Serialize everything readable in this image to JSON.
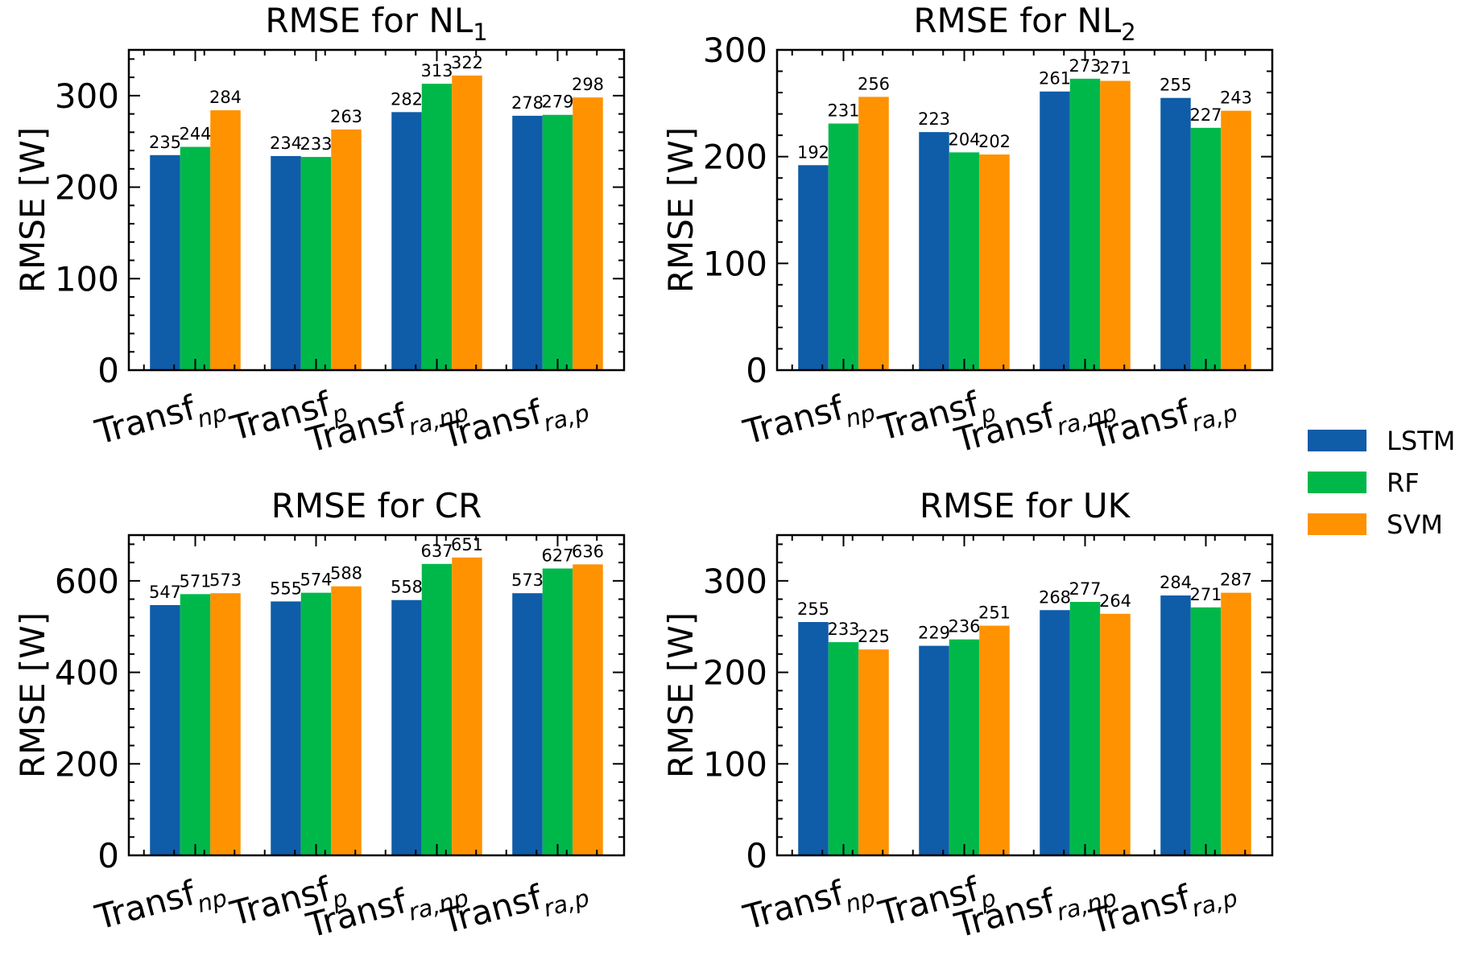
{
  "colors": {
    "LSTM": "#0f5ca8",
    "RF": "#00b84a",
    "SVM": "#ff9200"
  },
  "legend": [
    "LSTM",
    "RF",
    "SVM"
  ],
  "chart_data": [
    {
      "type": "bar",
      "title": "RMSE for NL",
      "title_sub": "1",
      "ylabel": "RMSE [W]",
      "ylim": [
        0,
        350
      ],
      "yticks": [
        0,
        100,
        200,
        300
      ],
      "categories": [
        {
          "base": "Transf",
          "sub": "np"
        },
        {
          "base": "Transf",
          "sub": "p"
        },
        {
          "base": "Transf",
          "sub": "ra,np"
        },
        {
          "base": "Transf",
          "sub": "ra,p"
        }
      ],
      "series": [
        {
          "name": "LSTM",
          "values": [
            235,
            234,
            282,
            278
          ]
        },
        {
          "name": "RF",
          "values": [
            244,
            233,
            313,
            279
          ]
        },
        {
          "name": "SVM",
          "values": [
            284,
            263,
            322,
            298
          ]
        }
      ]
    },
    {
      "type": "bar",
      "title": "RMSE for NL",
      "title_sub": "2",
      "ylabel": "RMSE [W]",
      "ylim": [
        0,
        300
      ],
      "yticks": [
        0,
        100,
        200,
        300
      ],
      "categories": [
        {
          "base": "Transf",
          "sub": "np"
        },
        {
          "base": "Transf",
          "sub": "p"
        },
        {
          "base": "Transf",
          "sub": "ra,np"
        },
        {
          "base": "Transf",
          "sub": "ra,p"
        }
      ],
      "series": [
        {
          "name": "LSTM",
          "values": [
            192,
            223,
            261,
            255
          ]
        },
        {
          "name": "RF",
          "values": [
            231,
            204,
            273,
            227
          ]
        },
        {
          "name": "SVM",
          "values": [
            256,
            202,
            271,
            243
          ]
        }
      ]
    },
    {
      "type": "bar",
      "title": "RMSE for CR",
      "title_sub": "",
      "ylabel": "RMSE [W]",
      "ylim": [
        0,
        700
      ],
      "yticks": [
        0,
        200,
        400,
        600
      ],
      "categories": [
        {
          "base": "Transf",
          "sub": "np"
        },
        {
          "base": "Transf",
          "sub": "p"
        },
        {
          "base": "Transf",
          "sub": "ra,np"
        },
        {
          "base": "Transf",
          "sub": "ra,p"
        }
      ],
      "series": [
        {
          "name": "LSTM",
          "values": [
            547,
            555,
            558,
            573
          ]
        },
        {
          "name": "RF",
          "values": [
            571,
            574,
            637,
            627
          ]
        },
        {
          "name": "SVM",
          "values": [
            573,
            588,
            651,
            636
          ]
        }
      ]
    },
    {
      "type": "bar",
      "title": "RMSE for UK",
      "title_sub": "",
      "ylabel": "RMSE [W]",
      "ylim": [
        0,
        350
      ],
      "yticks": [
        0,
        100,
        200,
        300
      ],
      "categories": [
        {
          "base": "Transf",
          "sub": "np"
        },
        {
          "base": "Transf",
          "sub": "p"
        },
        {
          "base": "Transf",
          "sub": "ra,np"
        },
        {
          "base": "Transf",
          "sub": "ra,p"
        }
      ],
      "series": [
        {
          "name": "LSTM",
          "values": [
            255,
            229,
            268,
            284
          ]
        },
        {
          "name": "RF",
          "values": [
            233,
            236,
            277,
            271
          ]
        },
        {
          "name": "SVM",
          "values": [
            225,
            251,
            264,
            287
          ]
        }
      ]
    }
  ]
}
